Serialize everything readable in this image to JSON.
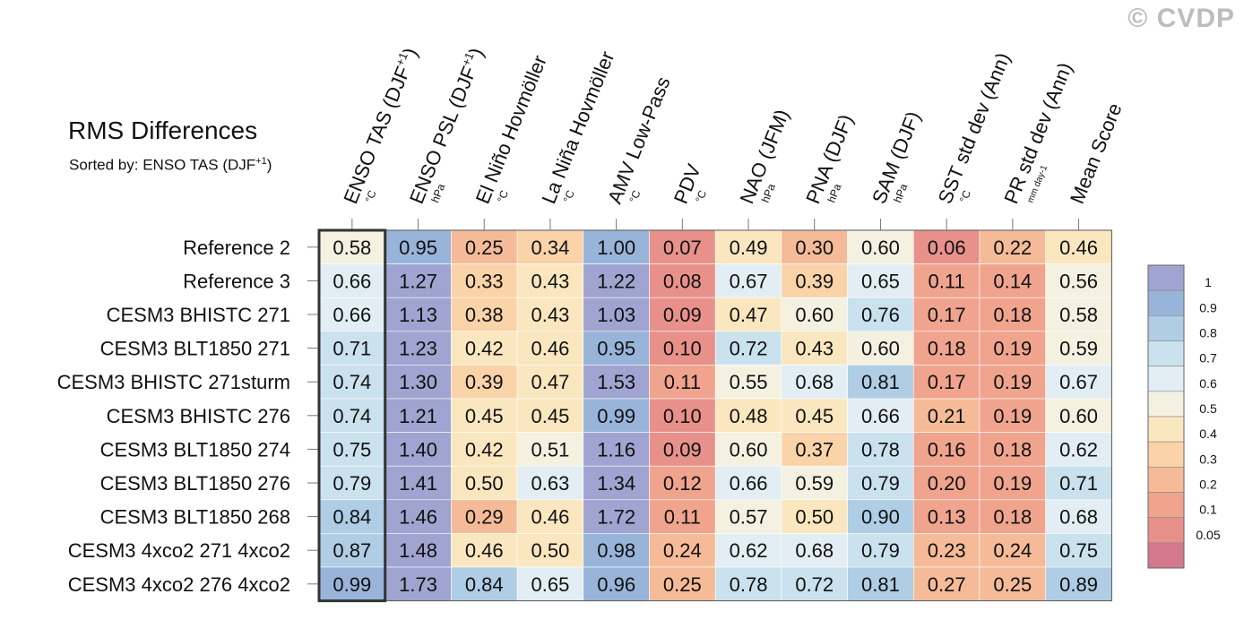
{
  "watermark": "© CVDP",
  "title": "RMS Differences",
  "subtitle": {
    "prefix": "Sorted by: ENSO TAS (DJF",
    "sup": "+1",
    "suffix": ")"
  },
  "chart_data": {
    "type": "heatmap",
    "title": "RMS Differences",
    "sorted_by": "ENSO TAS (DJF+1)",
    "highlighted_column": "ENSO TAS (DJF+1)",
    "columns": [
      {
        "label": "ENSO TAS (DJF",
        "sup": "+1",
        "tail": ")",
        "unit": "°C"
      },
      {
        "label": "ENSO PSL (DJF",
        "sup": "+1",
        "tail": ")",
        "unit": "hPa"
      },
      {
        "label": "El Niño Hovmöller",
        "sup": "",
        "tail": "",
        "unit": "°C"
      },
      {
        "label": "La Niña Hovmöller",
        "sup": "",
        "tail": "",
        "unit": "°C"
      },
      {
        "label": "AMV Low-Pass",
        "sup": "",
        "tail": "",
        "unit": "°C"
      },
      {
        "label": "PDV",
        "sup": "",
        "tail": "",
        "unit": "°C"
      },
      {
        "label": "NAO (JFM)",
        "sup": "",
        "tail": "",
        "unit": "hPa"
      },
      {
        "label": "PNA (DJF)",
        "sup": "",
        "tail": "",
        "unit": "hPa"
      },
      {
        "label": "SAM (DJF)",
        "sup": "",
        "tail": "",
        "unit": "hPa"
      },
      {
        "label": "SST std dev (Ann)",
        "sup": "",
        "tail": "",
        "unit": "°C"
      },
      {
        "label": "PR std dev (Ann)",
        "sup": "",
        "tail": "",
        "unit": "mm day-1"
      },
      {
        "label": "Mean Score",
        "sup": "",
        "tail": "",
        "unit": ""
      }
    ],
    "rows": [
      "Reference 2",
      "Reference 3",
      "CESM3 BHISTC 271",
      "CESM3 BLT1850 271",
      "CESM3 BHISTC 271sturm",
      "CESM3 BHISTC 276",
      "CESM3 BLT1850 274",
      "CESM3 BLT1850 276",
      "CESM3 BLT1850 268",
      "CESM3 4xco2 271 4xco2",
      "CESM3 4xco2 276 4xco2"
    ],
    "values": [
      [
        "0.58",
        "0.95",
        "0.25",
        "0.34",
        "1.00",
        "0.07",
        "0.49",
        "0.30",
        "0.60",
        "0.06",
        "0.22",
        "0.46"
      ],
      [
        "0.66",
        "1.27",
        "0.33",
        "0.43",
        "1.22",
        "0.08",
        "0.67",
        "0.39",
        "0.65",
        "0.11",
        "0.14",
        "0.56"
      ],
      [
        "0.66",
        "1.13",
        "0.38",
        "0.43",
        "1.03",
        "0.09",
        "0.47",
        "0.60",
        "0.76",
        "0.17",
        "0.18",
        "0.58"
      ],
      [
        "0.71",
        "1.23",
        "0.42",
        "0.46",
        "0.95",
        "0.10",
        "0.72",
        "0.43",
        "0.60",
        "0.18",
        "0.19",
        "0.59"
      ],
      [
        "0.74",
        "1.30",
        "0.39",
        "0.47",
        "1.53",
        "0.11",
        "0.55",
        "0.68",
        "0.81",
        "0.17",
        "0.19",
        "0.67"
      ],
      [
        "0.74",
        "1.21",
        "0.45",
        "0.45",
        "0.99",
        "0.10",
        "0.48",
        "0.45",
        "0.66",
        "0.21",
        "0.19",
        "0.60"
      ],
      [
        "0.75",
        "1.40",
        "0.42",
        "0.51",
        "1.16",
        "0.09",
        "0.60",
        "0.37",
        "0.78",
        "0.16",
        "0.18",
        "0.62"
      ],
      [
        "0.79",
        "1.41",
        "0.50",
        "0.63",
        "1.34",
        "0.12",
        "0.66",
        "0.59",
        "0.79",
        "0.20",
        "0.19",
        "0.71"
      ],
      [
        "0.84",
        "1.46",
        "0.29",
        "0.46",
        "1.72",
        "0.11",
        "0.57",
        "0.50",
        "0.90",
        "0.13",
        "0.18",
        "0.68"
      ],
      [
        "0.87",
        "1.48",
        "0.46",
        "0.50",
        "0.98",
        "0.24",
        "0.62",
        "0.68",
        "0.79",
        "0.23",
        "0.24",
        "0.75"
      ],
      [
        "0.99",
        "1.73",
        "0.84",
        "0.65",
        "0.96",
        "0.25",
        "0.78",
        "0.72",
        "0.81",
        "0.27",
        "0.25",
        "0.89"
      ]
    ],
    "colorbar": {
      "labels": [
        "1",
        "0.9",
        "0.8",
        "0.7",
        "0.6",
        "0.5",
        "0.4",
        "0.3",
        "0.2",
        "0.1",
        "0.05"
      ],
      "thresholds": [
        0.05,
        0.1,
        0.2,
        0.3,
        0.4,
        0.5,
        0.6,
        0.7,
        0.8,
        0.9,
        1
      ],
      "colors": [
        "#d4788e",
        "#e8918b",
        "#f0a48e",
        "#f5bb98",
        "#fad3a8",
        "#fbe7bf",
        "#f4f1e1",
        "#e2eef3",
        "#cae2ee",
        "#afcde4",
        "#98b4d9",
        "#a0a4d0"
      ]
    }
  }
}
